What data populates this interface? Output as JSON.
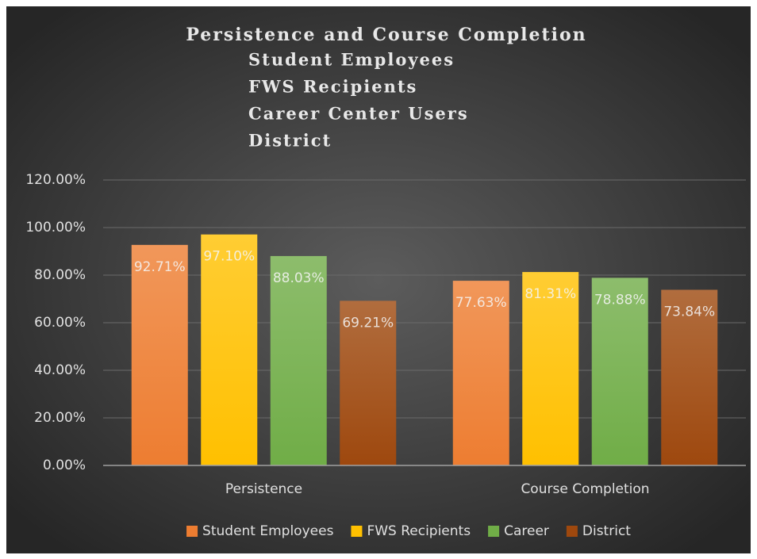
{
  "chart_data": {
    "type": "bar",
    "title": "Persistence and Course Completion",
    "subtitle": [
      "Student Employees",
      "FWS Recipients",
      "Career Center Users",
      "District"
    ],
    "categories": [
      "Persistence",
      "Course Completion"
    ],
    "series": [
      {
        "name": "Student Employees",
        "color": "#ed7d31",
        "values": [
          92.71,
          77.63
        ],
        "value_labels": [
          "92.71%",
          "77.63%"
        ]
      },
      {
        "name": "FWS Recipients",
        "color": "#ffc000",
        "values": [
          97.1,
          81.31
        ],
        "value_labels": [
          "97.10%",
          "81.31%"
        ]
      },
      {
        "name": "Career",
        "color": "#70ad47",
        "values": [
          88.03,
          78.88
        ],
        "value_labels": [
          "88.03%",
          "78.88%"
        ]
      },
      {
        "name": "District",
        "color": "#9e480e",
        "values": [
          69.21,
          73.84
        ],
        "value_labels": [
          "69.21%",
          "73.84%"
        ]
      }
    ],
    "ylim": [
      0,
      120
    ],
    "yticks": [
      {
        "value": 0,
        "label": "0.00%"
      },
      {
        "value": 20,
        "label": "20.00%"
      },
      {
        "value": 40,
        "label": "40.00%"
      },
      {
        "value": 60,
        "label": "60.00%"
      },
      {
        "value": 80,
        "label": "80.00%"
      },
      {
        "value": 100,
        "label": "100.00%"
      },
      {
        "value": 120,
        "label": "120.00%"
      }
    ],
    "grid": true,
    "legend": "bottom"
  }
}
